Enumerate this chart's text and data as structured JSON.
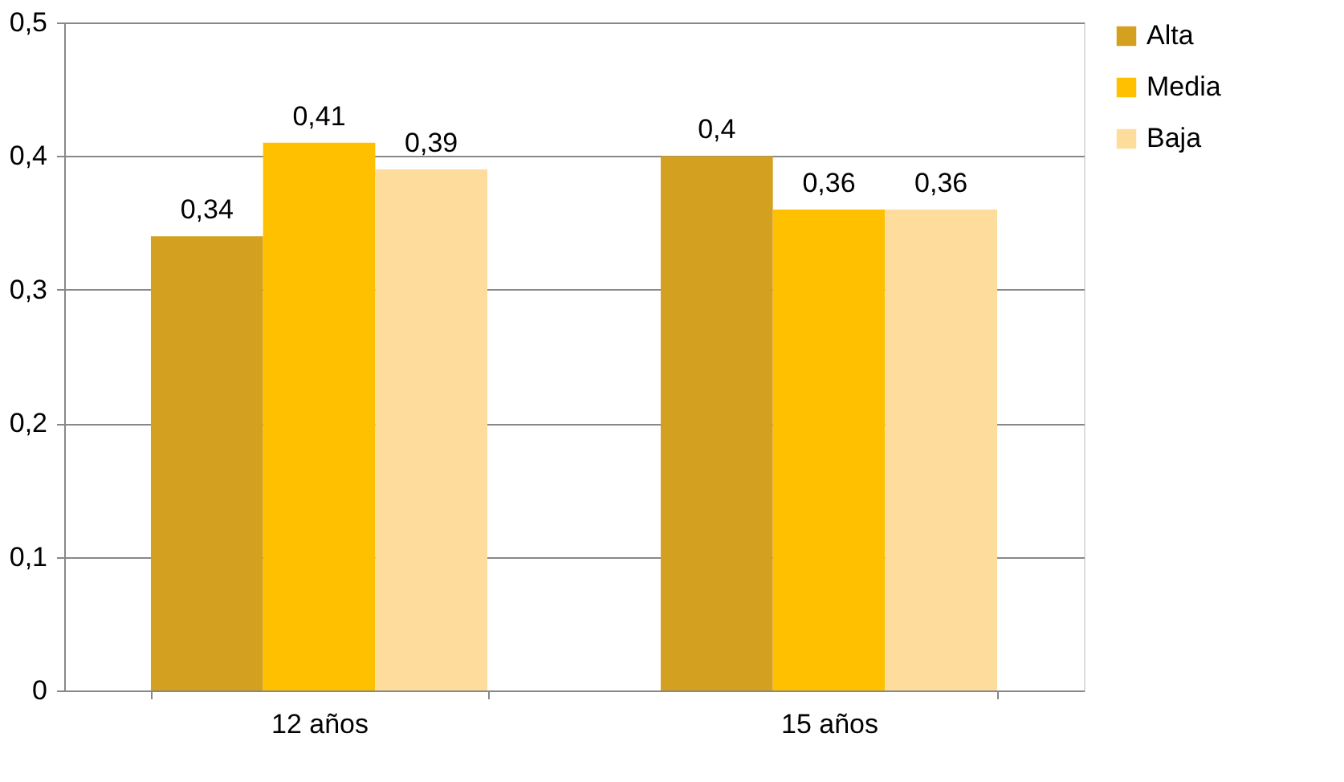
{
  "chart_data": {
    "type": "bar",
    "categories": [
      "12 años",
      "15 años"
    ],
    "series": [
      {
        "name": "Alta",
        "color": "#d4a020",
        "values": [
          0.34,
          0.4
        ],
        "value_labels": [
          "0,34",
          "0,4"
        ]
      },
      {
        "name": "Media",
        "color": "#ffc000",
        "values": [
          0.41,
          0.36
        ],
        "value_labels": [
          "0,41",
          "0,36"
        ]
      },
      {
        "name": "Baja",
        "color": "#fddc9c",
        "values": [
          0.39,
          0.36
        ],
        "value_labels": [
          "0,39",
          "0,36"
        ]
      }
    ],
    "ylim": [
      0,
      0.5
    ],
    "yticks": [
      0,
      {
        "value": 0.1,
        "label": "0,1"
      },
      {
        "value": 0.2,
        "label": "0,2"
      },
      {
        "value": 0.3,
        "label": "0,3"
      },
      {
        "value": 0.4,
        "label": "0,4"
      },
      {
        "value": 0.5,
        "label": "0,5"
      }
    ],
    "grid": "y",
    "legend": "right"
  }
}
